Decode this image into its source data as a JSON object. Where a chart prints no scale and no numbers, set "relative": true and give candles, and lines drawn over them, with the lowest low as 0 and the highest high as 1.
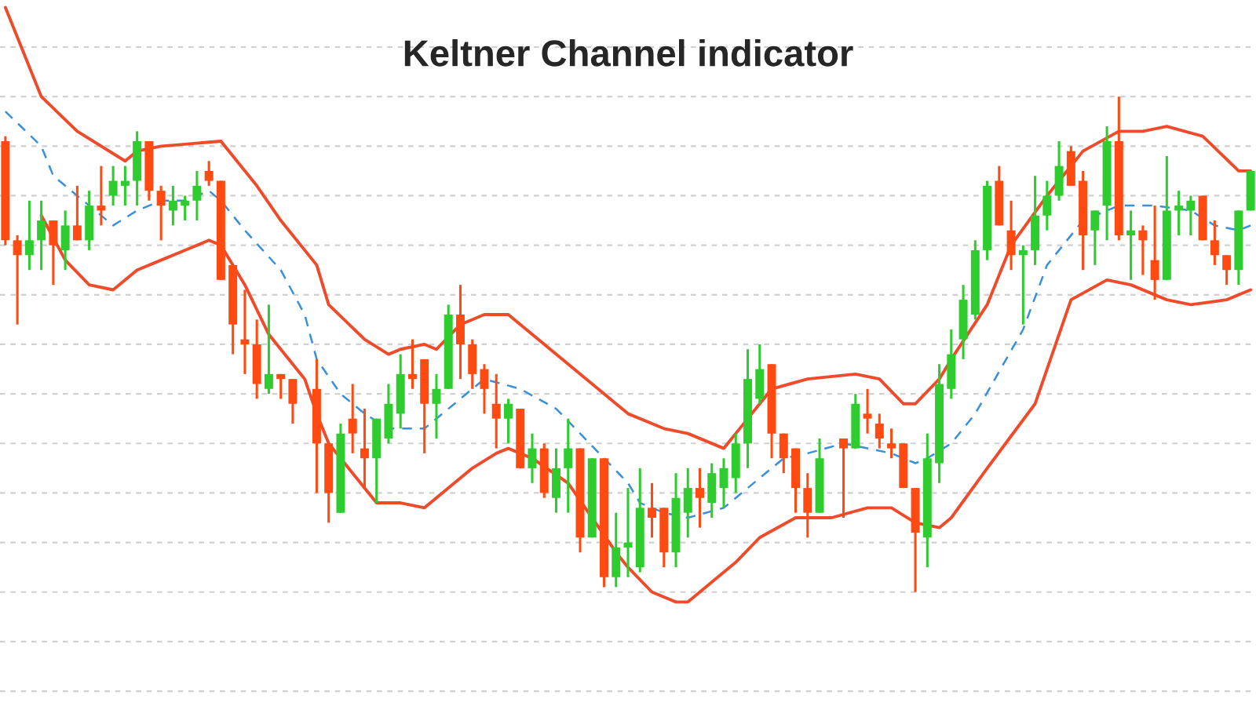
{
  "chart_data": {
    "type": "candlestick",
    "title": "Keltner Channel indicator",
    "relative": true,
    "grid": true,
    "categories": [
      null,
      null,
      null,
      null,
      null,
      null,
      null,
      null,
      null,
      null,
      null,
      null,
      null,
      null,
      null,
      null,
      null,
      null,
      null,
      null,
      null,
      null,
      null,
      null,
      null,
      null,
      null,
      null,
      null,
      null,
      null,
      null,
      null,
      null,
      null,
      null,
      null,
      null,
      null,
      null,
      null,
      null,
      null,
      null,
      null,
      null,
      null,
      null,
      null,
      null,
      null,
      null,
      null,
      null,
      null,
      null,
      null,
      null,
      null,
      null,
      null,
      null,
      null,
      null,
      null,
      null,
      null,
      null,
      null,
      null,
      null,
      null,
      null,
      null,
      null,
      null,
      null,
      null,
      null,
      null,
      null,
      null,
      null,
      null,
      null,
      null,
      null,
      null,
      null,
      null,
      null,
      null,
      null,
      null,
      null,
      null,
      null,
      null,
      null,
      null,
      null,
      null,
      null,
      null,
      null
    ],
    "ohlc": [
      [
        0.91,
        0.92,
        0.7,
        0.71
      ],
      [
        0.71,
        0.72,
        0.54,
        0.68
      ],
      [
        0.68,
        0.79,
        0.65,
        0.71
      ],
      [
        0.71,
        0.79,
        0.65,
        0.75
      ],
      [
        0.75,
        0.75,
        0.62,
        0.7
      ],
      [
        0.69,
        0.77,
        0.65,
        0.74
      ],
      [
        0.74,
        0.82,
        0.71,
        0.71
      ],
      [
        0.71,
        0.81,
        0.69,
        0.78
      ],
      [
        0.78,
        0.86,
        0.74,
        0.77
      ],
      [
        0.8,
        0.86,
        0.78,
        0.83
      ],
      [
        0.82,
        0.86,
        0.78,
        0.83
      ],
      [
        0.83,
        0.93,
        0.78,
        0.91
      ],
      [
        0.91,
        0.91,
        0.79,
        0.81
      ],
      [
        0.81,
        0.82,
        0.71,
        0.78
      ],
      [
        0.77,
        0.82,
        0.74,
        0.79
      ],
      [
        0.78,
        0.8,
        0.75,
        0.79
      ],
      [
        0.79,
        0.85,
        0.75,
        0.82
      ],
      [
        0.85,
        0.87,
        0.82,
        0.83
      ],
      [
        0.83,
        0.83,
        0.63,
        0.63
      ],
      [
        0.66,
        0.66,
        0.48,
        0.54
      ],
      [
        0.51,
        0.61,
        0.44,
        0.5
      ],
      [
        0.5,
        0.55,
        0.39,
        0.42
      ],
      [
        0.41,
        0.58,
        0.4,
        0.44
      ],
      [
        0.44,
        0.44,
        0.39,
        0.43
      ],
      [
        0.43,
        0.43,
        0.34,
        0.38
      ],
      null,
      [
        0.41,
        0.47,
        0.2,
        0.3
      ],
      [
        0.3,
        0.3,
        0.14,
        0.2
      ],
      [
        0.16,
        0.34,
        0.16,
        0.32
      ],
      [
        0.35,
        0.42,
        0.28,
        0.32
      ],
      [
        0.29,
        0.37,
        0.21,
        0.27
      ],
      [
        0.27,
        0.35,
        0.18,
        0.35
      ],
      [
        0.31,
        0.42,
        0.3,
        0.38
      ],
      [
        0.36,
        0.48,
        0.33,
        0.44
      ],
      [
        0.44,
        0.51,
        0.41,
        0.43
      ],
      [
        0.47,
        0.47,
        0.28,
        0.38
      ],
      [
        0.38,
        0.44,
        0.31,
        0.41
      ],
      [
        0.41,
        0.58,
        0.41,
        0.56
      ],
      [
        0.56,
        0.62,
        0.43,
        0.5
      ],
      [
        0.5,
        0.51,
        0.41,
        0.44
      ],
      [
        0.45,
        0.46,
        0.36,
        0.41
      ],
      [
        0.38,
        0.44,
        0.29,
        0.35
      ],
      [
        0.35,
        0.39,
        0.3,
        0.38
      ],
      [
        0.37,
        0.37,
        0.25,
        0.25
      ],
      [
        0.25,
        0.32,
        0.22,
        0.29
      ],
      [
        0.29,
        0.3,
        0.19,
        0.2
      ],
      [
        0.19,
        0.29,
        0.16,
        0.25
      ],
      [
        0.25,
        0.35,
        0.16,
        0.29
      ],
      [
        0.29,
        0.29,
        0.08,
        0.11
      ],
      [
        0.11,
        0.27,
        0.11,
        0.27
      ],
      [
        0.27,
        0.27,
        0.01,
        0.03
      ],
      [
        0.03,
        0.16,
        0.01,
        0.09
      ],
      [
        0.09,
        0.21,
        0.03,
        0.1
      ],
      [
        0.05,
        0.25,
        0.04,
        0.17
      ],
      [
        0.17,
        0.22,
        0.11,
        0.15
      ],
      [
        0.17,
        0.17,
        0.05,
        0.08
      ],
      [
        0.08,
        0.24,
        0.05,
        0.19
      ],
      [
        0.16,
        0.25,
        0.11,
        0.21
      ],
      [
        0.21,
        0.25,
        0.13,
        0.19
      ],
      [
        0.18,
        0.26,
        0.15,
        0.24
      ],
      [
        0.21,
        0.27,
        0.17,
        0.25
      ],
      [
        0.23,
        0.32,
        0.2,
        0.3
      ],
      [
        0.3,
        0.49,
        0.25,
        0.43
      ],
      [
        0.39,
        0.5,
        0.38,
        0.45
      ],
      [
        0.46,
        0.46,
        0.27,
        0.32
      ],
      [
        0.32,
        0.32,
        0.24,
        0.27
      ],
      [
        0.29,
        0.29,
        0.16,
        0.21
      ],
      [
        0.21,
        0.24,
        0.11,
        0.16
      ],
      [
        0.16,
        0.31,
        0.16,
        0.27
      ],
      null,
      [
        0.31,
        0.31,
        0.15,
        0.29
      ],
      [
        0.29,
        0.4,
        0.29,
        0.38
      ],
      [
        0.36,
        0.41,
        0.32,
        0.35
      ],
      [
        0.34,
        0.36,
        0.29,
        0.31
      ],
      [
        0.3,
        0.33,
        0.27,
        0.29
      ],
      [
        0.3,
        0.3,
        0.21,
        0.21
      ],
      [
        0.21,
        0.21,
        0,
        0.12
      ],
      [
        0.11,
        0.32,
        0.05,
        0.27
      ],
      [
        0.26,
        0.46,
        0.22,
        0.42
      ],
      [
        0.41,
        0.53,
        0.39,
        0.48
      ],
      [
        0.51,
        0.62,
        0.47,
        0.59
      ],
      [
        0.56,
        0.71,
        0.55,
        0.69
      ],
      [
        0.69,
        0.83,
        0.67,
        0.82
      ],
      [
        0.83,
        0.86,
        0.74,
        0.74
      ],
      [
        0.73,
        0.79,
        0.65,
        0.68
      ],
      [
        0.68,
        0.7,
        0.54,
        0.69
      ],
      [
        0.69,
        0.84,
        0.66,
        0.76
      ],
      [
        0.76,
        0.83,
        0.73,
        0.8
      ],
      [
        0.8,
        0.91,
        0.79,
        0.86
      ],
      [
        0.89,
        0.9,
        0.82,
        0.82
      ],
      [
        0.83,
        0.85,
        0.65,
        0.72
      ],
      [
        0.73,
        0.77,
        0.66,
        0.77
      ],
      [
        0.78,
        0.94,
        0.71,
        0.91
      ],
      [
        0.91,
        1,
        0.71,
        0.72
      ],
      [
        0.72,
        0.77,
        0.63,
        0.73
      ],
      [
        0.73,
        0.74,
        0.64,
        0.71
      ],
      [
        0.67,
        0.78,
        0.59,
        0.63
      ],
      [
        0.63,
        0.88,
        0.63,
        0.77
      ],
      [
        0.77,
        0.81,
        0.72,
        0.78
      ],
      [
        0.77,
        0.8,
        0.72,
        0.79
      ],
      [
        0.8,
        0.8,
        0.71,
        0.71
      ],
      [
        0.71,
        0.75,
        0.66,
        0.68
      ],
      [
        0.68,
        0.68,
        0.62,
        0.65
      ],
      [
        0.65,
        0.77,
        0.62,
        0.77
      ],
      [
        0.77,
        0.85,
        0.77,
        0.85
      ]
    ],
    "colors": [
      "#ff4a12",
      "#ff4a12",
      "#2ecc2e",
      "#2ecc2e",
      "#ff4a12",
      "#2ecc2e",
      "#ff4a12",
      "#2ecc2e",
      "#ff4a12",
      "#2ecc2e",
      "#2ecc2e",
      "#2ecc2e",
      "#ff4a12",
      "#ff4a12",
      "#2ecc2e",
      "#2ecc2e",
      "#2ecc2e",
      "#ff4a12",
      "#ff4a12",
      "#ff4a12",
      "#ff4a12",
      "#ff4a12",
      "#2ecc2e",
      "#ff4a12",
      "#ff4a12",
      null,
      "#ff4a12",
      "#ff4a12",
      "#2ecc2e",
      "#ff4a12",
      "#ff4a12",
      "#2ecc2e",
      "#2ecc2e",
      "#2ecc2e",
      "#ff4a12",
      "#ff4a12",
      "#2ecc2e",
      "#2ecc2e",
      "#ff4a12",
      "#ff4a12",
      "#ff4a12",
      "#ff4a12",
      "#2ecc2e",
      "#ff4a12",
      "#2ecc2e",
      "#ff4a12",
      "#2ecc2e",
      "#2ecc2e",
      "#ff4a12",
      "#2ecc2e",
      "#ff4a12",
      "#2ecc2e",
      "#2ecc2e",
      "#2ecc2e",
      "#ff4a12",
      "#ff4a12",
      "#2ecc2e",
      "#2ecc2e",
      "#ff4a12",
      "#2ecc2e",
      "#2ecc2e",
      "#2ecc2e",
      "#2ecc2e",
      "#2ecc2e",
      "#ff4a12",
      "#ff4a12",
      "#ff4a12",
      "#ff4a12",
      "#2ecc2e",
      null,
      "#ff4a12",
      "#2ecc2e",
      "#ff4a12",
      "#ff4a12",
      "#ff4a12",
      "#ff4a12",
      "#ff4a12",
      "#2ecc2e",
      "#2ecc2e",
      "#2ecc2e",
      "#2ecc2e",
      "#2ecc2e",
      "#2ecc2e",
      "#ff4a12",
      "#ff4a12",
      "#2ecc2e",
      "#2ecc2e",
      "#2ecc2e",
      "#2ecc2e",
      "#ff4a12",
      "#ff4a12",
      "#2ecc2e",
      "#2ecc2e",
      "#ff4a12",
      "#2ecc2e",
      "#ff4a12",
      "#ff4a12",
      "#2ecc2e",
      "#2ecc2e",
      "#2ecc2e",
      "#ff4a12",
      "#ff4a12",
      "#ff4a12",
      "#2ecc2e",
      "#2ecc2e"
    ],
    "series": [
      {
        "type": "line",
        "color": "#ef4a2a",
        "line_style": "solid",
        "values": [
          1.18,
          null,
          null,
          1.0,
          null,
          null,
          0.93,
          null,
          null,
          null,
          0.87,
          0.89,
          null,
          0.9,
          null,
          null,
          null,
          null,
          0.91,
          null,
          null,
          0.82,
          null,
          0.75,
          null,
          null,
          0.66,
          0.58,
          null,
          null,
          0.51,
          null,
          0.48,
          0.49,
          null,
          0.5,
          0.49,
          null,
          0.54,
          null,
          0.56,
          null,
          0.56,
          null,
          0.52,
          null,
          null,
          null,
          0.44,
          null,
          0.4,
          null,
          0.36,
          null,
          null,
          0.33,
          null,
          0.32,
          null,
          null,
          0.29,
          0.32,
          null,
          null,
          0.41,
          null,
          null,
          0.43,
          null,
          null,
          null,
          0.44,
          null,
          0.43,
          null,
          0.38,
          0.38,
          null,
          0.43,
          0.47,
          null,
          null,
          0.58,
          null,
          0.7,
          null,
          null,
          0.8,
          null,
          null,
          0.89,
          null,
          null,
          0.93,
          null,
          0.93,
          null,
          0.94,
          null,
          null,
          0.92,
          null,
          null,
          0.85,
          0.85
        ]
      },
      {
        "type": "line",
        "color": "#3a8fd9",
        "line_style": "dashed",
        "values": [
          0.97,
          null,
          null,
          0.9,
          0.84,
          null,
          null,
          0.78,
          null,
          0.74,
          null,
          0.77,
          null,
          0.79,
          null,
          0.79,
          null,
          0.81,
          0.79,
          null,
          0.73,
          null,
          null,
          0.65,
          null,
          0.56,
          0.47,
          null,
          0.4,
          null,
          0.36,
          null,
          0.33,
          null,
          null,
          0.33,
          null,
          null,
          0.39,
          null,
          0.43,
          null,
          null,
          0.41,
          null,
          null,
          0.37,
          null,
          0.32,
          null,
          0.27,
          null,
          0.22,
          0.18,
          null,
          0.16,
          null,
          0.15,
          null,
          null,
          0.17,
          null,
          0.21,
          null,
          null,
          0.27,
          null,
          0.28,
          null,
          null,
          0.3,
          null,
          0.29,
          null,
          0.28,
          null,
          0.26,
          0.27,
          null,
          0.3,
          null,
          0.36,
          null,
          null,
          null,
          0.53,
          null,
          0.66,
          null,
          null,
          0.75,
          null,
          null,
          0.78,
          null,
          null,
          0.78,
          null,
          null,
          0.77,
          null,
          0.74,
          null,
          0.73,
          0.74
        ]
      },
      {
        "type": "line",
        "color": "#ef4a2a",
        "line_style": "solid",
        "values": [
          null,
          null,
          null,
          0.76,
          null,
          0.67,
          null,
          0.62,
          null,
          0.61,
          null,
          0.65,
          null,
          0.67,
          null,
          0.69,
          null,
          0.71,
          0.7,
          null,
          0.62,
          null,
          0.52,
          null,
          null,
          0.43,
          0.36,
          0.3,
          null,
          0.24,
          null,
          0.18,
          null,
          0.18,
          null,
          0.17,
          null,
          0.21,
          null,
          0.25,
          null,
          0.28,
          0.29,
          null,
          0.27,
          null,
          null,
          0.22,
          null,
          0.15,
          null,
          0.08,
          0.05,
          null,
          0.0,
          null,
          -0.02,
          -0.02,
          null,
          0.02,
          null,
          0.06,
          null,
          0.11,
          null,
          null,
          0.15,
          null,
          null,
          0.15,
          null,
          null,
          0.17,
          null,
          0.17,
          null,
          0.14,
          null,
          0.13,
          0.15,
          null,
          null,
          0.25,
          null,
          null,
          null,
          0.38,
          null,
          null,
          0.59,
          null,
          null,
          0.63,
          null,
          0.62,
          null,
          null,
          0.59,
          null,
          0.58,
          null,
          null,
          0.59,
          null,
          0.61
        ]
      }
    ]
  }
}
